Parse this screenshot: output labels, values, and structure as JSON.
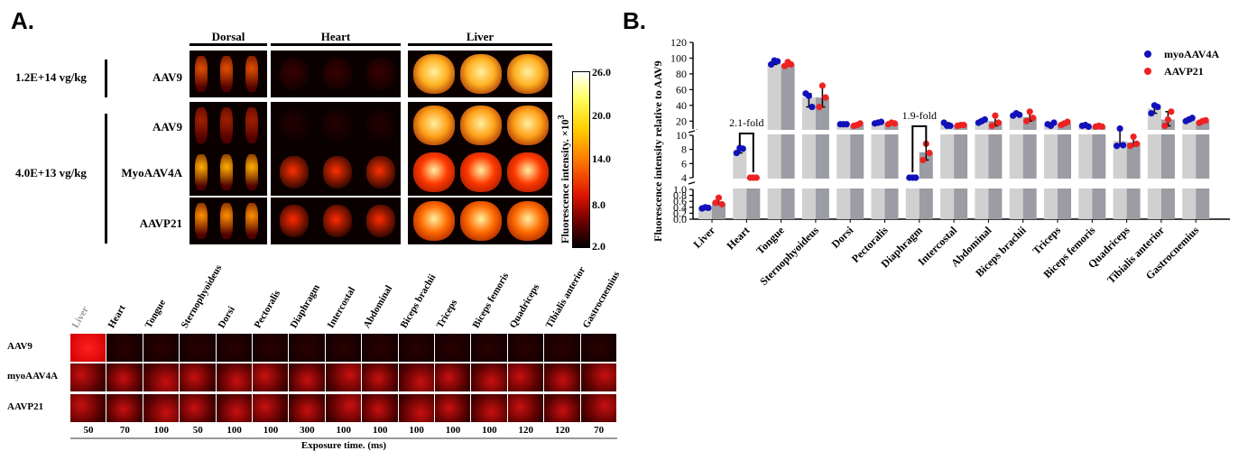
{
  "panel_a": {
    "letter": "A.",
    "column_headers": [
      "Dorsal",
      "Heart",
      "Liver"
    ],
    "dose_labels": [
      "1.2E+14 vg/kg",
      "4.0E+13 vg/kg"
    ],
    "row_labels": [
      "AAV9",
      "AAV9",
      "MyoAAV4A",
      "AAVP21"
    ],
    "colorbar": {
      "title": "Fluorescence intensity. ×10",
      "title_superscript": "3",
      "ticks": [
        "26.0",
        "20.0",
        "14.0",
        "8.0",
        "2.0"
      ]
    },
    "strip": {
      "tissues": [
        "Liver",
        "Heart",
        "Tongue",
        "Sternophyoideus",
        "Dorsi",
        "Pectoralis",
        "Diaphragm",
        "Intercostal",
        "Abdominal",
        "Biceps brachii",
        "Triceps",
        "Biceps femoris",
        "Quadriceps",
        "Tibialis anterior",
        "Gastrocnemius"
      ],
      "rows": [
        "AAV9",
        "myoAAV4A",
        "AAVP21"
      ],
      "exposures": [
        "50",
        "70",
        "100",
        "50",
        "100",
        "100",
        "300",
        "100",
        "100",
        "100",
        "100",
        "100",
        "120",
        "120",
        "70"
      ],
      "exposure_label": "Exposure time. (ms)"
    }
  },
  "chart_data": {
    "type": "bar",
    "panel_letter": "B.",
    "title": "",
    "xlabel": "",
    "ylabel": "Fluorescence intensity relative to AAV9",
    "categories": [
      "Liver",
      "Heart",
      "Tongue",
      "Sternophyoideus",
      "Dorsi",
      "Pectoralis",
      "Diaphragm",
      "Intercostal",
      "Abdominal",
      "Biceps brachii",
      "Triceps",
      "Biceps femoris",
      "Quadriceps",
      "Tibialis anterior",
      "Gastrocnemius"
    ],
    "y_axis_segments": [
      {
        "range": [
          0,
          1.0
        ],
        "ticks": [
          "0.0",
          "0.2",
          "0.4",
          "0.6",
          "0.8",
          "1.0"
        ]
      },
      {
        "range": [
          4,
          10
        ],
        "ticks": [
          "4",
          "6",
          "8",
          "10"
        ]
      },
      {
        "range": [
          10,
          120
        ],
        "ticks": [
          "20",
          "40",
          "60",
          "80",
          "100",
          "120"
        ]
      }
    ],
    "series": [
      {
        "name": "myoAAV4A",
        "color": "#1111bb",
        "bar_color": "#d0d0d0",
        "values": [
          0.38,
          7.8,
          94,
          50,
          16,
          18,
          3.6,
          15,
          20,
          28,
          16,
          14,
          9.2,
          36,
          22
        ],
        "points": [
          [
            0.36,
            0.4,
            0.38
          ],
          [
            7.5,
            8.2,
            8.1
          ],
          [
            92,
            97,
            96
          ],
          [
            55,
            52,
            38
          ],
          [
            16,
            16,
            16
          ],
          [
            17,
            18,
            19
          ],
          [
            3.4,
            3.9,
            3.8
          ],
          [
            18,
            14,
            14
          ],
          [
            18,
            20,
            22
          ],
          [
            27,
            30,
            28
          ],
          [
            16,
            14,
            18
          ],
          [
            14,
            15,
            13
          ],
          [
            8.5,
            10.5,
            8.6
          ],
          [
            30,
            40,
            38
          ],
          [
            20,
            22,
            24
          ]
        ]
      },
      {
        "name": "AAVP21",
        "color": "#ee2222",
        "bar_color": "#9c9ca4",
        "values": [
          0.55,
          3.6,
          92,
          50,
          15,
          17,
          7.6,
          15,
          20,
          25,
          17,
          13,
          9.0,
          22,
          20
        ],
        "points": [
          [
            0.55,
            0.72,
            0.5
          ],
          [
            3.5,
            3.7,
            3.6
          ],
          [
            90,
            95,
            92
          ],
          [
            38,
            65,
            50
          ],
          [
            14,
            15,
            17
          ],
          [
            16,
            18,
            17
          ],
          [
            6.5,
            8.8,
            7.5
          ],
          [
            14,
            15,
            15
          ],
          [
            14,
            27,
            18
          ],
          [
            20,
            32,
            24
          ],
          [
            15,
            17,
            19
          ],
          [
            13,
            14,
            13
          ],
          [
            8.5,
            9.8,
            8.8
          ],
          [
            14,
            22,
            32
          ],
          [
            18,
            20,
            21
          ]
        ]
      }
    ],
    "annotations": [
      {
        "text": "2.1-fold",
        "category": "Heart"
      },
      {
        "text": "1.9-fold",
        "category": "Diaphragm"
      }
    ],
    "legend_position": "top-right"
  }
}
